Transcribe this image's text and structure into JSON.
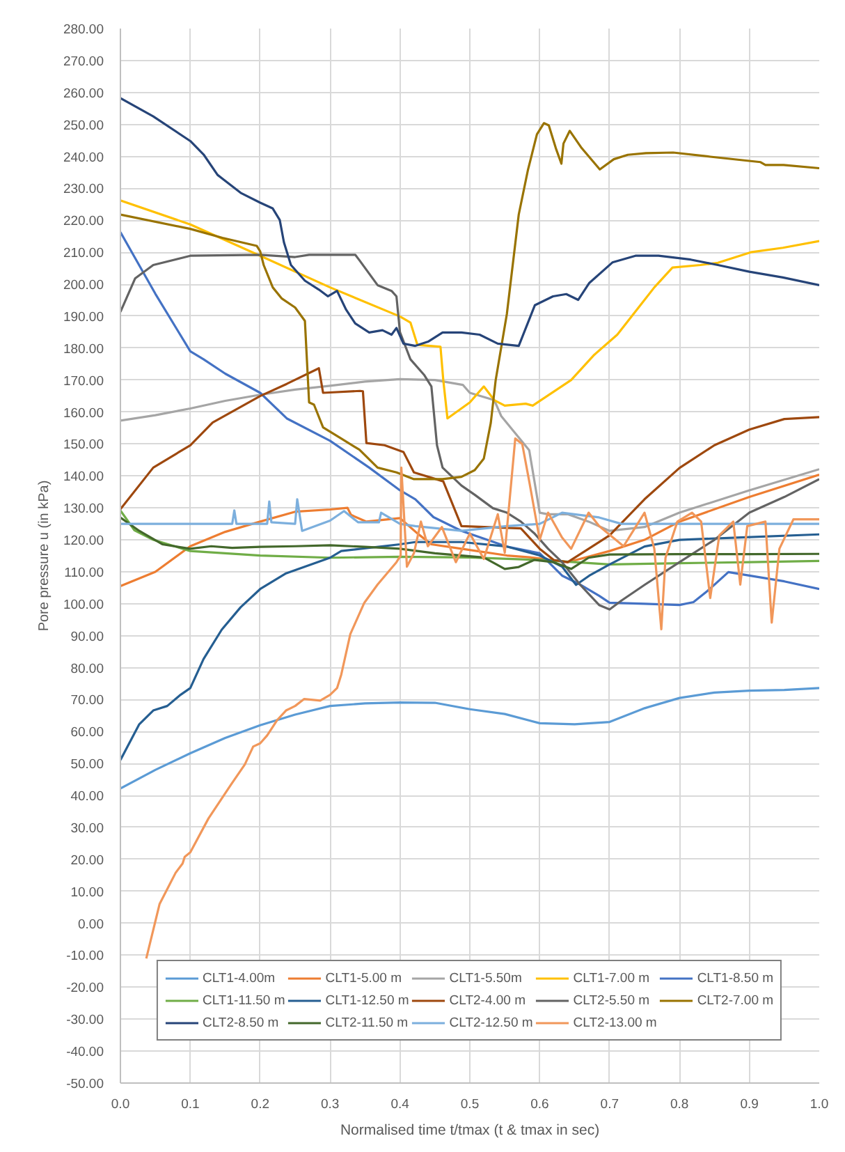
{
  "chart_data": {
    "type": "line",
    "xlabel": "Normalised time t/tmax (t & tmax in sec)",
    "ylabel": "Pore pressure u (in kPa)",
    "xlim": [
      0,
      1
    ],
    "ylim": [
      -50,
      280
    ],
    "xticks": [
      {
        "value": 0,
        "label": "0.0"
      },
      0.1,
      0.2,
      0.3,
      0.4,
      0.5,
      0.6,
      0.7,
      0.8,
      0.9,
      {
        "value": 1,
        "label": "1.0"
      }
    ],
    "yticks": [
      {
        "value": -50,
        "label": "-50.00"
      },
      {
        "value": -40,
        "label": "-40.00"
      },
      {
        "value": -30,
        "label": "-30.00"
      },
      {
        "value": -20,
        "label": "-20.00"
      },
      {
        "value": -10,
        "label": "-10.00"
      },
      {
        "value": 0,
        "label": "0.00"
      },
      {
        "value": 10,
        "label": "10.00"
      },
      {
        "value": 20,
        "label": "20.00"
      },
      {
        "value": 30,
        "label": "30.00"
      },
      {
        "value": 40,
        "label": "40.00"
      },
      {
        "value": 50,
        "label": "50.00"
      },
      {
        "value": 60,
        "label": "60.00"
      },
      {
        "value": 70,
        "label": "70.00"
      },
      {
        "value": 80,
        "label": "80.00"
      },
      {
        "value": 90,
        "label": "90.00"
      },
      {
        "value": 100,
        "label": "100.00"
      },
      {
        "value": 110,
        "label": "110.00"
      },
      {
        "value": 120,
        "label": "120.00"
      },
      {
        "value": 130,
        "label": "130.00"
      },
      {
        "value": 140,
        "label": "140.00"
      },
      {
        "value": 150,
        "label": "150.00"
      },
      {
        "value": 160,
        "label": "160.00"
      },
      {
        "value": 170,
        "label": "170.00"
      },
      {
        "value": 180,
        "label": "180.00"
      },
      {
        "value": 190,
        "label": "190.00"
      },
      {
        "value": 200,
        "label": "200.00"
      },
      {
        "value": 210,
        "label": "210.00"
      },
      {
        "value": 220,
        "label": "220.00"
      },
      {
        "value": 230,
        "label": "230.00"
      },
      {
        "value": 240,
        "label": "240.00"
      },
      {
        "value": 250,
        "label": "250.00"
      },
      {
        "value": 260,
        "label": "260.00"
      },
      {
        "value": 270,
        "label": "270.00"
      },
      {
        "value": 280,
        "label": "280.00"
      }
    ],
    "grid": true,
    "legend": "bottom",
    "series": [
      {
        "name": "CLT1-4.00m",
        "color": "#5b9bd5",
        "x": [
          0,
          0.05,
          0.1,
          0.15,
          0.2,
          0.25,
          0.3,
          0.35,
          0.4,
          0.45,
          0.5,
          0.55,
          0.6,
          0.65,
          0.7,
          0.75,
          0.8,
          0.85,
          0.9,
          0.95,
          1.0
        ],
        "values": [
          42.2,
          48,
          53.2,
          58,
          62,
          65.3,
          68,
          68.8,
          69.1,
          69,
          67,
          65.5,
          62.6,
          62.3,
          63,
          67.3,
          70.5,
          72.2,
          72.8,
          73,
          73.6
        ]
      },
      {
        "name": "CLT1-5.00 m",
        "color": "#ed7d31",
        "x": [
          0,
          0.05,
          0.1,
          0.15,
          0.2,
          0.25,
          0.3,
          0.325,
          0.33,
          0.352,
          0.4,
          0.425,
          0.445,
          0.488,
          0.553,
          0.592,
          0.64,
          0.7,
          0.75,
          0.8,
          0.9,
          1.0
        ],
        "values": [
          105.5,
          110,
          118,
          122.5,
          125.7,
          128.8,
          129.5,
          130,
          127.8,
          125.7,
          126.8,
          122,
          118.6,
          117.2,
          115.1,
          114.4,
          113,
          116.5,
          120,
          125.7,
          133.4,
          140.4
        ]
      },
      {
        "name": "CLT1-5.50m",
        "color": "#a5a5a5",
        "x": [
          0,
          0.05,
          0.1,
          0.15,
          0.2,
          0.25,
          0.3,
          0.35,
          0.4,
          0.45,
          0.49,
          0.5,
          0.535,
          0.545,
          0.585,
          0.6,
          0.612,
          0.64,
          0.67,
          0.7,
          0.75,
          0.8,
          0.9,
          1.0
        ],
        "values": [
          157.3,
          159,
          161.1,
          163.5,
          165.4,
          167,
          168.2,
          169.5,
          170.3,
          170,
          168.5,
          166,
          163.7,
          158.7,
          148,
          128.5,
          128,
          128,
          125.7,
          122.8,
          124,
          128.5,
          135.5,
          142.1
        ]
      },
      {
        "name": "CLT1-7.00 m",
        "color": "#ffc000",
        "x": [
          0,
          0.1,
          0.2,
          0.3,
          0.4,
          0.415,
          0.425,
          0.458,
          0.462,
          0.468,
          0.5,
          0.52,
          0.535,
          0.55,
          0.58,
          0.59,
          0.645,
          0.678,
          0.711,
          0.744,
          0.764,
          0.79,
          0.83,
          0.855,
          0.902,
          0.948,
          1.0
        ],
        "values": [
          226.2,
          218.7,
          208.9,
          199,
          189.9,
          188,
          181,
          180.4,
          170,
          158,
          163,
          168,
          163.7,
          162,
          162.6,
          162,
          170,
          177.9,
          184.2,
          193.4,
          199,
          205.2,
          206,
          206.7,
          210,
          211.4,
          213.5
        ]
      },
      {
        "name": "CLT1-8.50 m",
        "color": "#4472c4",
        "x": [
          0,
          0.05,
          0.1,
          0.119,
          0.15,
          0.2,
          0.238,
          0.3,
          0.356,
          0.4,
          0.422,
          0.448,
          0.488,
          0.553,
          0.6,
          0.632,
          0.658,
          0.685,
          0.7,
          0.75,
          0.8,
          0.82,
          0.84,
          0.87,
          0.9,
          0.95,
          1.0
        ],
        "values": [
          216.3,
          197,
          179,
          176.5,
          172,
          166,
          158,
          151,
          142.6,
          135.5,
          132.7,
          127.1,
          122.8,
          117.9,
          115.8,
          108.8,
          106,
          102.5,
          100.3,
          100,
          99.6,
          100.5,
          104,
          109.9,
          108.8,
          107,
          104.6
        ]
      },
      {
        "name": "CLT1-11.50 m",
        "color": "#70ad47",
        "x": [
          0,
          0.02,
          0.047,
          0.1,
          0.2,
          0.3,
          0.4,
          0.5,
          0.6,
          0.7,
          0.8,
          0.9,
          1.0
        ],
        "values": [
          129.2,
          123,
          120,
          116.5,
          115.1,
          114.4,
          114.7,
          114.5,
          113.7,
          112.3,
          112.7,
          113,
          113.4
        ]
      },
      {
        "name": "CLT1-12.50 m",
        "color": "#255e91",
        "x": [
          0,
          0.027,
          0.047,
          0.067,
          0.086,
          0.1,
          0.119,
          0.145,
          0.172,
          0.2,
          0.237,
          0.3,
          0.316,
          0.4,
          0.422,
          0.488,
          0.553,
          0.6,
          0.632,
          0.652,
          0.671,
          0.7,
          0.75,
          0.8,
          0.882,
          1.0
        ],
        "values": [
          51.1,
          62.3,
          66.6,
          68,
          71.5,
          73.6,
          82.7,
          91.9,
          98.9,
          104.6,
          109.5,
          114.4,
          116.5,
          118.6,
          119.3,
          119.3,
          117.9,
          115.1,
          111.6,
          105.9,
          108.8,
          112.3,
          117.9,
          120,
          120.7,
          121.7
        ]
      },
      {
        "name": "CLT2-4.00 m",
        "color": "#9e480e",
        "x": [
          0,
          0.047,
          0.1,
          0.132,
          0.2,
          0.238,
          0.284,
          0.29,
          0.343,
          0.347,
          0.352,
          0.378,
          0.405,
          0.42,
          0.462,
          0.488,
          0.573,
          0.6,
          0.62,
          0.64,
          0.665,
          0.7,
          0.75,
          0.8,
          0.85,
          0.9,
          0.95,
          1.0
        ],
        "values": [
          129.6,
          142.6,
          149.6,
          156.7,
          165,
          168.8,
          173.7,
          166,
          166.6,
          166.5,
          150.3,
          149.6,
          147.5,
          141.1,
          138.3,
          124.3,
          123.6,
          117.2,
          113.7,
          113,
          116.5,
          121.4,
          132.7,
          142.5,
          149.6,
          154.5,
          157.8,
          158.4
        ]
      },
      {
        "name": "CLT2-5.50 m",
        "color": "#636363",
        "x": [
          0,
          0.021,
          0.047,
          0.1,
          0.2,
          0.25,
          0.27,
          0.336,
          0.342,
          0.368,
          0.388,
          0.395,
          0.4,
          0.415,
          0.435,
          0.445,
          0.453,
          0.461,
          0.488,
          0.507,
          0.533,
          0.553,
          0.573,
          0.592,
          0.612,
          0.632,
          0.658,
          0.685,
          0.7,
          0.717,
          0.75,
          0.8,
          0.85,
          0.9,
          0.95,
          1.0
        ],
        "values": [
          191.3,
          201.8,
          206,
          208.9,
          209.2,
          208.5,
          209.2,
          209.2,
          207.5,
          199.7,
          197.9,
          196.2,
          185,
          176.5,
          171.5,
          168,
          149.6,
          142.6,
          137,
          134.1,
          129.9,
          128.5,
          125.7,
          122.1,
          117.2,
          113,
          105.9,
          99.6,
          98.2,
          101,
          105.9,
          113,
          120,
          128.5,
          133.4,
          139
        ]
      },
      {
        "name": "CLT2-7.00 m",
        "color": "#997300",
        "x": [
          0,
          0.1,
          0.146,
          0.195,
          0.2,
          0.205,
          0.218,
          0.231,
          0.25,
          0.264,
          0.27,
          0.277,
          0.29,
          0.316,
          0.342,
          0.368,
          0.395,
          0.42,
          0.461,
          0.488,
          0.507,
          0.52,
          0.53,
          0.537,
          0.553,
          0.57,
          0.583,
          0.596,
          0.606,
          0.613,
          0.623,
          0.631,
          0.634,
          0.643,
          0.66,
          0.686,
          0.706,
          0.726,
          0.752,
          0.791,
          0.844,
          0.916,
          0.923,
          0.949,
          1.0
        ],
        "values": [
          221.8,
          217.3,
          214.5,
          212,
          210.3,
          206,
          199,
          195.5,
          192.7,
          188.5,
          163,
          162.3,
          155.2,
          151.7,
          148.2,
          142.6,
          141.1,
          139,
          139,
          139.7,
          141.8,
          145.4,
          156.6,
          170,
          190.7,
          221.8,
          235.6,
          246.9,
          250.4,
          249.7,
          242.6,
          237.7,
          244,
          248,
          242.6,
          235.9,
          239.1,
          240.5,
          241,
          241.2,
          239.9,
          238.2,
          237.3,
          237.3,
          236.3
        ]
      },
      {
        "name": "CLT2-8.50 m",
        "color": "#264478",
        "x": [
          0,
          0.047,
          0.1,
          0.119,
          0.139,
          0.172,
          0.2,
          0.218,
          0.228,
          0.234,
          0.244,
          0.264,
          0.284,
          0.297,
          0.31,
          0.323,
          0.336,
          0.356,
          0.375,
          0.388,
          0.395,
          0.405,
          0.422,
          0.441,
          0.461,
          0.488,
          0.514,
          0.54,
          0.57,
          0.593,
          0.619,
          0.638,
          0.655,
          0.671,
          0.704,
          0.737,
          0.77,
          0.816,
          0.855,
          0.9,
          0.948,
          1.0
        ],
        "values": [
          258.2,
          252.5,
          244.8,
          240.6,
          234.2,
          228.6,
          225.5,
          223.7,
          220.1,
          213.1,
          206,
          201.1,
          198.3,
          196.2,
          197.9,
          192,
          187.7,
          184.9,
          185.6,
          184.2,
          186.3,
          181.4,
          180.7,
          182.1,
          184.9,
          184.9,
          184.2,
          181.4,
          180.7,
          193.4,
          196.2,
          196.9,
          195.1,
          200.4,
          206.8,
          208.9,
          208.9,
          207.7,
          206,
          203.9,
          202.1,
          199.7
        ]
      },
      {
        "name": "CLT2-11.50 m",
        "color": "#43682b",
        "x": [
          0,
          0.027,
          0.06,
          0.1,
          0.13,
          0.16,
          0.2,
          0.25,
          0.3,
          0.35,
          0.4,
          0.45,
          0.488,
          0.52,
          0.55,
          0.57,
          0.592,
          0.62,
          0.645,
          0.67,
          0.7,
          0.8,
          0.9,
          1.0
        ],
        "values": [
          127,
          122.8,
          118.6,
          117.2,
          118,
          117.5,
          117.8,
          118,
          118.3,
          117.8,
          117.2,
          115.8,
          115.1,
          114.5,
          110.9,
          111.5,
          113.7,
          113,
          110.9,
          114.4,
          115.4,
          115.5,
          115.5,
          115.6
        ]
      },
      {
        "name": "CLT2-12.50 m",
        "color": "#7cafdd",
        "x": [
          0,
          0.16,
          0.163,
          0.166,
          0.21,
          0.213,
          0.216,
          0.25,
          0.253,
          0.26,
          0.3,
          0.32,
          0.34,
          0.37,
          0.373,
          0.4,
          0.422,
          0.488,
          0.553,
          0.6,
          0.632,
          0.685,
          0.717,
          0.8,
          0.9,
          1.0
        ],
        "values": [
          125,
          125,
          129.2,
          125,
          125,
          132,
          125.5,
          125,
          132.7,
          122.8,
          126,
          129,
          125.5,
          125.5,
          128.5,
          125,
          124.3,
          122.8,
          124.3,
          125,
          128.5,
          127,
          125,
          125,
          125,
          125
        ]
      },
      {
        "name": "CLT2-13.00 m",
        "color": "#f1975a",
        "x": [
          0.037,
          0.056,
          0.079,
          0.089,
          0.092,
          0.1,
          0.126,
          0.158,
          0.178,
          0.19,
          0.2,
          0.21,
          0.224,
          0.237,
          0.25,
          0.263,
          0.286,
          0.3,
          0.31,
          0.316,
          0.329,
          0.349,
          0.368,
          0.395,
          0.401,
          0.402,
          0.41,
          0.42,
          0.43,
          0.44,
          0.46,
          0.48,
          0.5,
          0.52,
          0.54,
          0.55,
          0.565,
          0.575,
          0.585,
          0.6,
          0.612,
          0.632,
          0.645,
          0.67,
          0.685,
          0.72,
          0.75,
          0.764,
          0.774,
          0.78,
          0.797,
          0.818,
          0.831,
          0.844,
          0.857,
          0.877,
          0.887,
          0.897,
          0.923,
          0.932,
          0.943,
          0.963,
          1.0
        ],
        "values": [
          -11,
          6,
          15.8,
          18.7,
          20.8,
          22.2,
          32.8,
          43.3,
          49.7,
          55.3,
          56.3,
          58.8,
          63.5,
          66.6,
          68,
          70.2,
          69.7,
          71.5,
          73.6,
          77.8,
          90.5,
          100.3,
          106,
          113,
          115.1,
          142.6,
          111.6,
          115.8,
          125.7,
          118,
          124,
          113,
          122,
          114,
          128,
          116,
          151.7,
          150,
          138.3,
          120,
          128.5,
          120.7,
          117.2,
          128.5,
          124.3,
          118,
          128.5,
          117.2,
          92,
          114.4,
          125.7,
          128.5,
          125.7,
          101.8,
          121.4,
          125.7,
          106,
          124.3,
          125.7,
          94.1,
          117.2,
          126.4,
          126.4
        ]
      }
    ]
  }
}
